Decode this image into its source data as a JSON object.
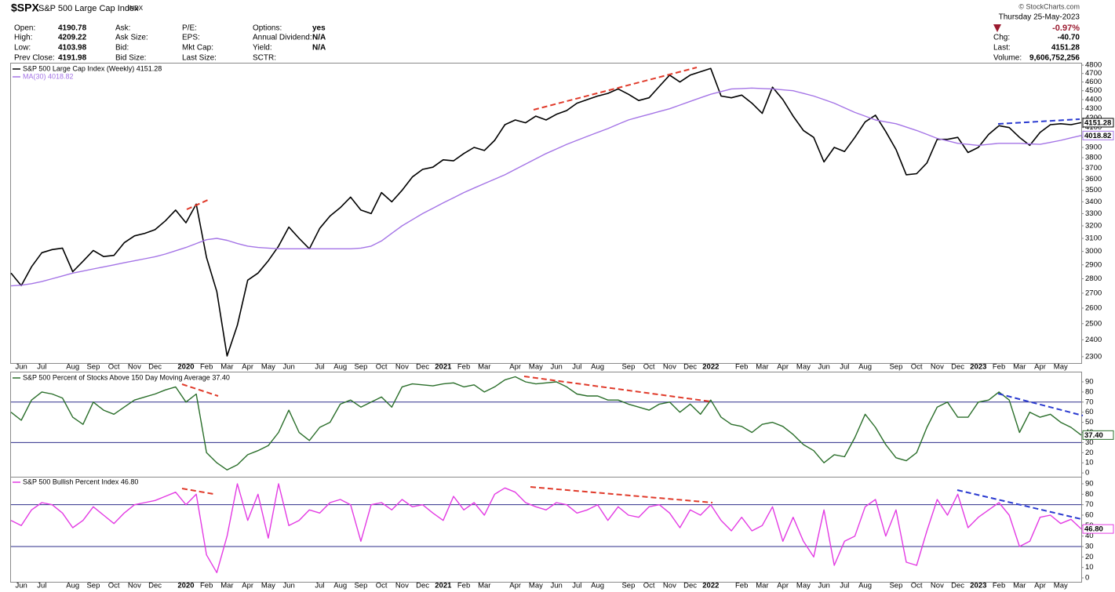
{
  "header": {
    "symbol": "$SPX",
    "name": "S&P 500 Large Cap Index",
    "exchange": "INDX",
    "columns": [
      [
        {
          "label": "Open:",
          "value": "4190.78"
        },
        {
          "label": "High:",
          "value": "4209.22"
        },
        {
          "label": "Low:",
          "value": "4103.98"
        },
        {
          "label": "Prev Close:",
          "value": "4191.98"
        }
      ],
      [
        {
          "label": "Ask:"
        },
        {
          "label": "Ask Size:"
        },
        {
          "label": "Bid:"
        },
        {
          "label": "Bid Size:"
        }
      ],
      [
        {
          "label": "P/E:"
        },
        {
          "label": "EPS:"
        },
        {
          "label": "Mkt Cap:"
        },
        {
          "label": "Last Size:"
        }
      ],
      [
        {
          "label": "Options:",
          "value": "yes"
        },
        {
          "label": "Annual Dividend:",
          "value": "N/A"
        },
        {
          "label": "Yield:",
          "value": "N/A"
        },
        {
          "label": "SCTR:"
        }
      ]
    ],
    "source": "© StockCharts.com",
    "date": "Thursday 25-May-2023",
    "change_pct": "-0.97%",
    "quote": [
      {
        "label": "Chg:",
        "value": "-40.70"
      },
      {
        "label": "Last:",
        "value": "4151.28"
      },
      {
        "label": "Volume:",
        "value": "9,606,752,256"
      }
    ]
  },
  "chart_data": [
    {
      "type": "line",
      "log_scale": true,
      "categories": [
        null,
        "Jun",
        null,
        "Jul",
        null,
        null,
        "Aug",
        null,
        "Sep",
        null,
        "Oct",
        null,
        "Nov",
        null,
        "Dec",
        null,
        null,
        "2020",
        null,
        "Feb",
        null,
        "Mar",
        null,
        "Apr",
        null,
        "May",
        null,
        "Jun",
        null,
        null,
        "Jul",
        null,
        "Aug",
        null,
        "Sep",
        null,
        "Oct",
        null,
        "Nov",
        null,
        "Dec",
        null,
        "2021",
        null,
        "Feb",
        null,
        "Mar",
        null,
        null,
        "Apr",
        null,
        "May",
        null,
        "Jun",
        null,
        "Jul",
        null,
        "Aug",
        null,
        null,
        "Sep",
        null,
        "Oct",
        null,
        "Nov",
        null,
        "Dec",
        null,
        "2022",
        null,
        null,
        "Feb",
        null,
        "Mar",
        null,
        "Apr",
        null,
        "May",
        null,
        "Jun",
        null,
        "Jul",
        null,
        "Aug",
        null,
        null,
        "Sep",
        null,
        "Oct",
        null,
        "Nov",
        null,
        "Dec",
        null,
        "2023",
        null,
        "Feb",
        null,
        "Mar",
        null,
        "Apr",
        null,
        "May",
        null,
        null
      ],
      "series": [
        {
          "name": "S&P 500 Large Cap Index (Weekly) 4151.28",
          "color": "#000000",
          "end_label": "4151.28",
          "values": [
            2840,
            2752,
            2886,
            2990,
            3014,
            3025,
            2850,
            2926,
            3007,
            2961,
            2970,
            3066,
            3120,
            3140,
            3169,
            3240,
            3330,
            3225,
            3380,
            2954,
            2711,
            2304,
            2490,
            2790,
            2840,
            2930,
            3040,
            3190,
            3100,
            3020,
            3180,
            3280,
            3350,
            3440,
            3330,
            3300,
            3480,
            3400,
            3500,
            3620,
            3690,
            3710,
            3780,
            3770,
            3840,
            3900,
            3870,
            3970,
            4130,
            4180,
            4150,
            4220,
            4180,
            4240,
            4280,
            4360,
            4400,
            4440,
            4470,
            4520,
            4460,
            4390,
            4420,
            4550,
            4680,
            4600,
            4680,
            4720,
            4760,
            4440,
            4420,
            4450,
            4360,
            4250,
            4540,
            4400,
            4220,
            4070,
            4000,
            3760,
            3900,
            3860,
            4000,
            4160,
            4230,
            4060,
            3880,
            3640,
            3650,
            3750,
            3980,
            3980,
            4000,
            3850,
            3900,
            4030,
            4120,
            4100,
            4000,
            3920,
            4050,
            4130,
            4140,
            4130,
            4151.28
          ]
        },
        {
          "name": "MA(30) 4018.82",
          "color": "#a474e6",
          "end_label": "4018.82",
          "values": [
            2750,
            2755,
            2765,
            2780,
            2800,
            2820,
            2840,
            2855,
            2870,
            2885,
            2900,
            2915,
            2930,
            2945,
            2960,
            2980,
            3005,
            3030,
            3060,
            3090,
            3100,
            3085,
            3060,
            3040,
            3030,
            3025,
            3020,
            3020,
            3020,
            3020,
            3020,
            3020,
            3020,
            3020,
            3025,
            3040,
            3080,
            3140,
            3200,
            3250,
            3300,
            3345,
            3390,
            3435,
            3480,
            3520,
            3560,
            3600,
            3640,
            3690,
            3740,
            3790,
            3840,
            3885,
            3930,
            3970,
            4010,
            4050,
            4090,
            4135,
            4180,
            4210,
            4240,
            4270,
            4300,
            4340,
            4380,
            4420,
            4460,
            4490,
            4520,
            4525,
            4530,
            4525,
            4520,
            4510,
            4500,
            4470,
            4440,
            4400,
            4360,
            4310,
            4260,
            4220,
            4180,
            4160,
            4140,
            4105,
            4070,
            4030,
            3990,
            3965,
            3940,
            3930,
            3920,
            3930,
            3940,
            3940,
            3940,
            3935,
            3930,
            3950,
            3970,
            3995,
            4018.82
          ]
        }
      ],
      "ylim": [
        2268,
        4810
      ],
      "yticks": [
        2300,
        2400,
        2500,
        2600,
        2700,
        2800,
        2900,
        3000,
        3100,
        3200,
        3300,
        3400,
        3500,
        3600,
        3700,
        3800,
        3900,
        4000,
        4100,
        4200,
        4300,
        4400,
        4500,
        4600,
        4700,
        4800
      ]
    },
    {
      "type": "line",
      "series": [
        {
          "name": "S&P 500 Percent of Stocks Above 150 Day Moving Average 37.40",
          "color": "#2a6e2a",
          "end_label": "37.40",
          "values": [
            60,
            52,
            72,
            80,
            78,
            74,
            55,
            48,
            70,
            62,
            58,
            65,
            72,
            75,
            78,
            82,
            85,
            70,
            78,
            20,
            10,
            3,
            8,
            18,
            22,
            27,
            40,
            62,
            40,
            32,
            45,
            50,
            68,
            72,
            65,
            70,
            75,
            65,
            85,
            88,
            87,
            86,
            88,
            89,
            85,
            87,
            80,
            85,
            92,
            95,
            90,
            88,
            89,
            90,
            85,
            78,
            76,
            76,
            72,
            72,
            68,
            65,
            62,
            68,
            70,
            60,
            68,
            58,
            72,
            55,
            48,
            46,
            40,
            48,
            50,
            46,
            38,
            28,
            22,
            10,
            18,
            16,
            35,
            58,
            45,
            28,
            15,
            12,
            20,
            45,
            65,
            70,
            55,
            55,
            70,
            72,
            80,
            72,
            40,
            60,
            55,
            58,
            50,
            45,
            37.4
          ]
        }
      ],
      "reference_lines": [
        30,
        70
      ],
      "ylim": [
        -3,
        98.5
      ],
      "yticks": [
        0,
        10,
        20,
        30,
        40,
        50,
        60,
        70,
        80,
        90
      ]
    },
    {
      "type": "line",
      "categories": [
        null,
        "Jun",
        null,
        "Jul",
        null,
        null,
        "Aug",
        null,
        "Sep",
        null,
        "Oct",
        null,
        "Nov",
        null,
        "Dec",
        null,
        null,
        "2020",
        null,
        "Feb",
        null,
        "Mar",
        null,
        "Apr",
        null,
        "May",
        null,
        "Jun",
        null,
        null,
        "Jul",
        null,
        "Aug",
        null,
        "Sep",
        null,
        "Oct",
        null,
        "Nov",
        null,
        "Dec",
        null,
        "2021",
        null,
        "Feb",
        null,
        "Mar",
        null,
        null,
        "Apr",
        null,
        "May",
        null,
        "Jun",
        null,
        "Jul",
        null,
        "Aug",
        null,
        null,
        "Sep",
        null,
        "Oct",
        null,
        "Nov",
        null,
        "Dec",
        null,
        "2022",
        null,
        null,
        "Feb",
        null,
        "Mar",
        null,
        "Apr",
        null,
        "May",
        null,
        "Jun",
        null,
        "Jul",
        null,
        "Aug",
        null,
        null,
        "Sep",
        null,
        "Oct",
        null,
        "Nov",
        null,
        "Dec",
        null,
        "2023",
        null,
        "Feb",
        null,
        "Mar",
        null,
        "Apr",
        null,
        "May",
        null,
        null
      ],
      "series": [
        {
          "name": "S&P 500 Bullish Percent Index 46.80",
          "color": "#e33be3",
          "end_label": "46.80",
          "values": [
            55,
            50,
            65,
            72,
            70,
            62,
            48,
            55,
            68,
            60,
            52,
            62,
            70,
            72,
            74,
            78,
            82,
            70,
            80,
            22,
            5,
            40,
            90,
            55,
            80,
            38,
            90,
            50,
            55,
            65,
            62,
            72,
            75,
            70,
            35,
            70,
            72,
            65,
            75,
            68,
            70,
            62,
            55,
            78,
            65,
            72,
            60,
            80,
            86,
            82,
            72,
            68,
            65,
            72,
            70,
            62,
            65,
            70,
            55,
            68,
            60,
            58,
            68,
            70,
            62,
            48,
            65,
            60,
            70,
            55,
            45,
            58,
            45,
            50,
            68,
            35,
            58,
            35,
            20,
            65,
            12,
            35,
            40,
            68,
            75,
            40,
            65,
            15,
            12,
            45,
            75,
            60,
            80,
            48,
            58,
            65,
            72,
            60,
            30,
            35,
            58,
            60,
            52,
            56,
            46.8
          ]
        }
      ],
      "reference_lines": [
        30,
        70
      ],
      "ylim": [
        -3,
        96
      ],
      "yticks": [
        0,
        10,
        20,
        30,
        40,
        50,
        60,
        70,
        80,
        90
      ]
    }
  ]
}
